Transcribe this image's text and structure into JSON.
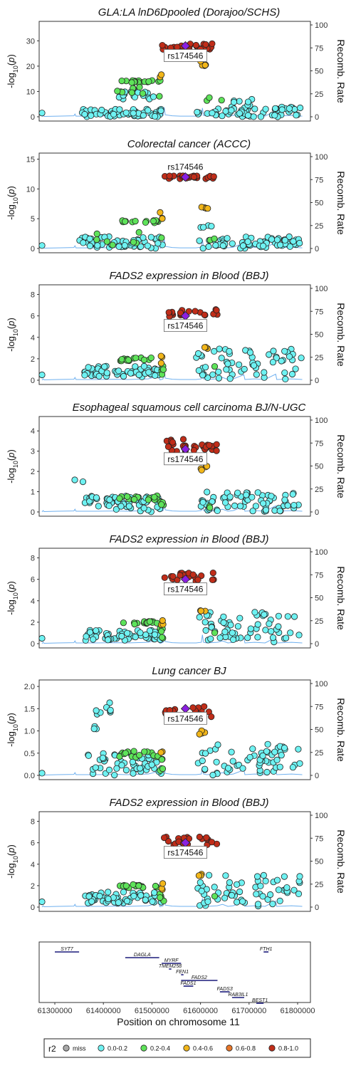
{
  "colors": {
    "miss": "#a8a8a8",
    "r2_0_0_2": "#6ef2f2",
    "r2_0_2_0_4": "#5ee35a",
    "r2_0_4_0_6": "#f2b619",
    "r2_0_6_0_8": "#e8772a",
    "r2_0_8_1_0": "#c02d19",
    "lead": "#8a1fe0",
    "recomb": "#6fb0ef",
    "gene": "#1a1a7a"
  },
  "y_axis_label": "-log10(p)",
  "recomb_axis_label": "Recomb. Rate",
  "lead_label": "rs174546",
  "chart_data": [
    {
      "type": "scatter",
      "title": "GLA:LA lnD6Dpooled (Dorajoo/SCHS)",
      "ylim": [
        0,
        36
      ],
      "yticks": [
        0,
        10,
        20,
        30
      ],
      "recomb_ylim": [
        0,
        100
      ],
      "recomb_ticks": [
        0,
        25,
        50,
        75,
        100
      ],
      "xlim": [
        61300000,
        61800000
      ],
      "lead": {
        "x": 61570000,
        "y": 28
      },
      "clusters": [
        {
          "r2": "0.8-1.0",
          "x": [
            61525000,
            61630000
          ],
          "y": [
            26,
            29
          ],
          "n": 30
        },
        {
          "r2": "0.4-0.6",
          "x": [
            61595000,
            61612000
          ],
          "y": [
            20,
            22
          ],
          "n": 5
        },
        {
          "r2": "0.4-0.6",
          "x": [
            61522000,
            61526000
          ],
          "y": [
            15,
            17.5
          ],
          "n": 2
        },
        {
          "r2": "0.2-0.4",
          "x": [
            61450000,
            61523000
          ],
          "y": [
            13.5,
            14.5
          ],
          "n": 18
        },
        {
          "r2": "0.2-0.4",
          "x": [
            61440000,
            61525000
          ],
          "y": [
            8,
            12
          ],
          "n": 8
        },
        {
          "r2": "0.2-0.4",
          "x": [
            61600000,
            61640000
          ],
          "y": [
            6,
            8
          ],
          "n": 3
        },
        {
          "r2": "0.0-0.2",
          "x": [
            61445000,
            61520000
          ],
          "y": [
            7,
            10
          ],
          "n": 18
        },
        {
          "r2": "0.0-0.2",
          "x": [
            61375000,
            61525000
          ],
          "y": [
            0,
            3
          ],
          "n": 55
        },
        {
          "r2": "0.0-0.2",
          "x": [
            61590000,
            61790000
          ],
          "y": [
            0,
            4
          ],
          "n": 60
        },
        {
          "r2": "0.0-0.2",
          "x": [
            61660000,
            61700000
          ],
          "y": [
            4,
            7
          ],
          "n": 8
        },
        {
          "r2": "0.0-0.2",
          "x": [
            61300000,
            61300000
          ],
          "y": [
            1.5,
            1.5
          ],
          "n": 1
        }
      ]
    },
    {
      "type": "scatter",
      "title": "Colorectal cancer (ACCC)",
      "ylim": [
        0,
        15.3
      ],
      "yticks": [
        0,
        5,
        10,
        15
      ],
      "recomb_ylim": [
        0,
        100
      ],
      "recomb_ticks": [
        0,
        25,
        50,
        75,
        100
      ],
      "xlim": [
        61300000,
        61800000
      ],
      "lead": {
        "x": 61570000,
        "y": 12
      },
      "lead_label_pos": "above",
      "clusters": [
        {
          "r2": "0.8-1.0",
          "x": [
            61530000,
            61630000
          ],
          "y": [
            11.7,
            12.2
          ],
          "n": 30
        },
        {
          "r2": "0.4-0.6",
          "x": [
            61595000,
            61612000
          ],
          "y": [
            6.5,
            7
          ],
          "n": 4
        },
        {
          "r2": "0.4-0.6",
          "x": [
            61520000,
            61527000
          ],
          "y": [
            5,
            6.2
          ],
          "n": 3
        },
        {
          "r2": "0.2-0.4",
          "x": [
            61450000,
            61520000
          ],
          "y": [
            4.3,
            4.7
          ],
          "n": 15
        },
        {
          "r2": "0.2-0.4",
          "x": [
            61400000,
            61528000
          ],
          "y": [
            0.5,
            3
          ],
          "n": 8
        },
        {
          "r2": "0.2-0.4",
          "x": [
            61615000,
            61630000
          ],
          "y": [
            1.2,
            1.8
          ],
          "n": 2
        },
        {
          "r2": "0.0-0.2",
          "x": [
            61370000,
            61530000
          ],
          "y": [
            0,
            2
          ],
          "n": 55
        },
        {
          "r2": "0.0-0.2",
          "x": [
            61590000,
            61790000
          ],
          "y": [
            0,
            2
          ],
          "n": 65
        },
        {
          "r2": "0.0-0.2",
          "x": [
            61598000,
            61620000
          ],
          "y": [
            3.5,
            4.3
          ],
          "n": 4
        },
        {
          "r2": "0.0-0.2",
          "x": [
            61300000,
            61300000
          ],
          "y": [
            0.5,
            0.5
          ],
          "n": 1
        }
      ]
    },
    {
      "type": "scatter",
      "title": "FADS2 expression in Blood (BBJ)",
      "ylim": [
        0,
        8.5
      ],
      "yticks": [
        0,
        2,
        4,
        6,
        8
      ],
      "recomb_ylim": [
        0,
        100
      ],
      "recomb_ticks": [
        0,
        25,
        50,
        75,
        100
      ],
      "xlim": [
        61300000,
        61800000
      ],
      "lead": {
        "x": 61570000,
        "y": 6
      },
      "clusters": [
        {
          "r2": "0.8-1.0",
          "x": [
            61530000,
            61630000
          ],
          "y": [
            5.8,
            6.6
          ],
          "n": 22
        },
        {
          "r2": "0.4-0.6",
          "x": [
            61595000,
            61612000
          ],
          "y": [
            2.9,
            3.1
          ],
          "n": 3
        },
        {
          "r2": "0.4-0.6",
          "x": [
            61520000,
            61528000
          ],
          "y": [
            1.5,
            2.3
          ],
          "n": 3
        },
        {
          "r2": "0.2-0.4",
          "x": [
            61445000,
            61520000
          ],
          "y": [
            1.8,
            2.1
          ],
          "n": 15
        },
        {
          "r2": "0.2-0.4",
          "x": [
            61522000,
            61530000
          ],
          "y": [
            0.5,
            1.5
          ],
          "n": 5
        },
        {
          "r2": "0.2-0.4",
          "x": [
            61620000,
            61630000
          ],
          "y": [
            1.0,
            1.3
          ],
          "n": 1
        },
        {
          "r2": "0.0-0.2",
          "x": [
            61380000,
            61525000
          ],
          "y": [
            0.3,
            1.4
          ],
          "n": 55
        },
        {
          "r2": "0.0-0.2",
          "x": [
            61590000,
            61790000
          ],
          "y": [
            0.1,
            3
          ],
          "n": 60
        },
        {
          "r2": "0.0-0.2",
          "x": [
            61300000,
            61300000
          ],
          "y": [
            0.5,
            0.5
          ],
          "n": 1
        }
      ]
    },
    {
      "type": "scatter",
      "title": "Esophageal squamous cell carcinoma BJ/N-UGC",
      "ylim": [
        0,
        4.5
      ],
      "yticks": [
        0,
        1,
        2,
        3,
        4
      ],
      "recomb_ylim": [
        0,
        100
      ],
      "recomb_ticks": [
        0,
        25,
        50,
        75,
        100
      ],
      "xlim": [
        61300000,
        61800000
      ],
      "lead": {
        "x": 61570000,
        "y": 3.1
      },
      "clusters": [
        {
          "r2": "0.8-1.0",
          "x": [
            61530000,
            61630000
          ],
          "y": [
            2.9,
            3.6
          ],
          "n": 30
        },
        {
          "r2": "0.4-0.6",
          "x": [
            61595000,
            61612000
          ],
          "y": [
            2.0,
            2.3
          ],
          "n": 4
        },
        {
          "r2": "0.2-0.4",
          "x": [
            61445000,
            61520000
          ],
          "y": [
            0.6,
            0.85
          ],
          "n": 15
        },
        {
          "r2": "0.2-0.4",
          "x": [
            61520000,
            61530000
          ],
          "y": [
            0.1,
            0.6
          ],
          "n": 4
        },
        {
          "r2": "0.2-0.4",
          "x": [
            61610000,
            61620000
          ],
          "y": [
            0.2,
            0.3
          ],
          "n": 2
        },
        {
          "r2": "0.0-0.2",
          "x": [
            61380000,
            61525000
          ],
          "y": [
            0.0,
            0.8
          ],
          "n": 55
        },
        {
          "r2": "0.0-0.2",
          "x": [
            61590000,
            61790000
          ],
          "y": [
            0.0,
            1.0
          ],
          "n": 65
        },
        {
          "r2": "0.0-0.2",
          "x": [
            61300000,
            61440000
          ],
          "y": [
            0.9,
            1.6
          ],
          "n": 2
        }
      ]
    },
    {
      "type": "scatter",
      "title": "FADS2 expression in Blood (BBJ)",
      "ylim": [
        0,
        8.5
      ],
      "yticks": [
        0,
        2,
        4,
        6,
        8
      ],
      "recomb_ylim": [
        0,
        100
      ],
      "recomb_ticks": [
        0,
        25,
        50,
        75,
        100
      ],
      "xlim": [
        61300000,
        61800000
      ],
      "lead": {
        "x": 61570000,
        "y": 6
      },
      "clusters": [
        {
          "r2": "0.8-1.0",
          "x": [
            61530000,
            61630000
          ],
          "y": [
            5.8,
            6.6
          ],
          "n": 22
        },
        {
          "r2": "0.4-0.6",
          "x": [
            61595000,
            61612000
          ],
          "y": [
            2.9,
            3.1
          ],
          "n": 3
        },
        {
          "r2": "0.4-0.6",
          "x": [
            61520000,
            61528000
          ],
          "y": [
            1.5,
            2.3
          ],
          "n": 3
        },
        {
          "r2": "0.2-0.4",
          "x": [
            61445000,
            61520000
          ],
          "y": [
            1.8,
            2.1
          ],
          "n": 15
        },
        {
          "r2": "0.2-0.4",
          "x": [
            61522000,
            61530000
          ],
          "y": [
            0.5,
            1.5
          ],
          "n": 5
        },
        {
          "r2": "0.2-0.4",
          "x": [
            61620000,
            61630000
          ],
          "y": [
            1.0,
            1.3
          ],
          "n": 1
        },
        {
          "r2": "0.0-0.2",
          "x": [
            61380000,
            61525000
          ],
          "y": [
            0.3,
            1.4
          ],
          "n": 55
        },
        {
          "r2": "0.0-0.2",
          "x": [
            61590000,
            61790000
          ],
          "y": [
            0.1,
            3
          ],
          "n": 60
        },
        {
          "r2": "0.0-0.2",
          "x": [
            61300000,
            61300000
          ],
          "y": [
            0.5,
            0.5
          ],
          "n": 1
        }
      ]
    },
    {
      "type": "scatter",
      "title": "Lung cancer BJ",
      "ylim": [
        0,
        2.05
      ],
      "yticks": [
        0.0,
        0.5,
        1.0,
        1.5,
        2.0
      ],
      "ytick_labels": [
        "0.0",
        "0.5",
        "1.0",
        "1.5",
        "2.0"
      ],
      "recomb_ylim": [
        0,
        100
      ],
      "recomb_ticks": [
        0,
        25,
        50,
        75,
        100
      ],
      "xlim": [
        61300000,
        61800000
      ],
      "lead": {
        "x": 61570000,
        "y": 1.5
      },
      "clusters": [
        {
          "r2": "0.8-1.0",
          "x": [
            61530000,
            61630000
          ],
          "y": [
            1.25,
            1.55
          ],
          "n": 30
        },
        {
          "r2": "0.4-0.6",
          "x": [
            61595000,
            61612000
          ],
          "y": [
            0.9,
            1.05
          ],
          "n": 4
        },
        {
          "r2": "0.4-0.6",
          "x": [
            61522000,
            61528000
          ],
          "y": [
            0.5,
            0.6
          ],
          "n": 2
        },
        {
          "r2": "0.2-0.4",
          "x": [
            61445000,
            61520000
          ],
          "y": [
            0.4,
            0.55
          ],
          "n": 15
        },
        {
          "r2": "0.2-0.4",
          "x": [
            61520000,
            61530000
          ],
          "y": [
            0.05,
            0.4
          ],
          "n": 4
        },
        {
          "r2": "0.0-0.2",
          "x": [
            61400000,
            61430000
          ],
          "y": [
            1.35,
            1.65
          ],
          "n": 8
        },
        {
          "r2": "0.0-0.2",
          "x": [
            61395000,
            61405000
          ],
          "y": [
            1.0,
            1.1
          ],
          "n": 3
        },
        {
          "r2": "0.0-0.2",
          "x": [
            61380000,
            61525000
          ],
          "y": [
            0.0,
            0.5
          ],
          "n": 50
        },
        {
          "r2": "0.0-0.2",
          "x": [
            61590000,
            61790000
          ],
          "y": [
            0.0,
            0.7
          ],
          "n": 60
        },
        {
          "r2": "0.0-0.2",
          "x": [
            61300000,
            61300000
          ],
          "y": [
            0.05,
            0.05
          ],
          "n": 1
        }
      ]
    },
    {
      "type": "scatter",
      "title": "FADS2 expression in Blood (BBJ)",
      "ylim": [
        0,
        8.5
      ],
      "yticks": [
        0,
        2,
        4,
        6,
        8
      ],
      "recomb_ylim": [
        0,
        100
      ],
      "recomb_ticks": [
        0,
        25,
        50,
        75,
        100
      ],
      "xlim": [
        61300000,
        61800000
      ],
      "lead": {
        "x": 61570000,
        "y": 6
      },
      "clusters": [
        {
          "r2": "0.8-1.0",
          "x": [
            61530000,
            61630000
          ],
          "y": [
            5.8,
            6.6
          ],
          "n": 22
        },
        {
          "r2": "0.4-0.6",
          "x": [
            61595000,
            61612000
          ],
          "y": [
            2.9,
            3.1
          ],
          "n": 3
        },
        {
          "r2": "0.4-0.6",
          "x": [
            61520000,
            61528000
          ],
          "y": [
            1.5,
            2.3
          ],
          "n": 3
        },
        {
          "r2": "0.2-0.4",
          "x": [
            61445000,
            61520000
          ],
          "y": [
            1.8,
            2.1
          ],
          "n": 15
        },
        {
          "r2": "0.2-0.4",
          "x": [
            61522000,
            61530000
          ],
          "y": [
            0.5,
            1.5
          ],
          "n": 5
        },
        {
          "r2": "0.2-0.4",
          "x": [
            61620000,
            61630000
          ],
          "y": [
            1.0,
            1.3
          ],
          "n": 1
        },
        {
          "r2": "0.0-0.2",
          "x": [
            61380000,
            61525000
          ],
          "y": [
            0.3,
            1.4
          ],
          "n": 55
        },
        {
          "r2": "0.0-0.2",
          "x": [
            61590000,
            61790000
          ],
          "y": [
            0.1,
            3
          ],
          "n": 60
        },
        {
          "r2": "0.0-0.2",
          "x": [
            61300000,
            61300000
          ],
          "y": [
            0.5,
            0.5
          ],
          "n": 1
        }
      ]
    }
  ],
  "genes": {
    "xlim": [
      61300000,
      61800000
    ],
    "xticks": [
      61300000,
      61400000,
      61500000,
      61600000,
      61700000,
      61800000
    ],
    "xtick_labels": [
      "61300000",
      "61400000",
      "61500000",
      "61600000",
      "61700000",
      "61800000"
    ],
    "xlabel": "Position on chromosome 11",
    "items": [
      {
        "name": "SYT7",
        "start": 61300000,
        "end": 61350000,
        "row": 0
      },
      {
        "name": "FTH1",
        "start": 61730000,
        "end": 61740000,
        "row": 0
      },
      {
        "name": "DAGLA",
        "start": 61445000,
        "end": 61515000,
        "row": 1
      },
      {
        "name": "MYRF",
        "start": 61520000,
        "end": 61560000,
        "row": 2
      },
      {
        "name": "TMEM258",
        "start": 61535000,
        "end": 61540000,
        "row": 3
      },
      {
        "name": "FEN1",
        "start": 61560000,
        "end": 61565000,
        "row": 4
      },
      {
        "name": "FADS2",
        "start": 61560000,
        "end": 61635000,
        "row": 5
      },
      {
        "name": "FADS1",
        "start": 61565000,
        "end": 61585000,
        "row": 6
      },
      {
        "name": "FADS3",
        "start": 61640000,
        "end": 61660000,
        "row": 7
      },
      {
        "name": "RAB3IL1",
        "start": 61665000,
        "end": 61690000,
        "row": 8
      },
      {
        "name": "BEST1",
        "start": 61715000,
        "end": 61730000,
        "row": 9
      }
    ]
  },
  "legend": {
    "title": "r2",
    "items": [
      {
        "label": "miss",
        "color_key": "miss"
      },
      {
        "label": "0.0-0.2",
        "color_key": "r2_0_0_2"
      },
      {
        "label": "0.2-0.4",
        "color_key": "r2_0_2_0_4"
      },
      {
        "label": "0.4-0.6",
        "color_key": "r2_0_4_0_6"
      },
      {
        "label": "0.6-0.8",
        "color_key": "r2_0_6_0_8"
      },
      {
        "label": "0.8-1.0",
        "color_key": "r2_0_8_1_0"
      }
    ]
  }
}
